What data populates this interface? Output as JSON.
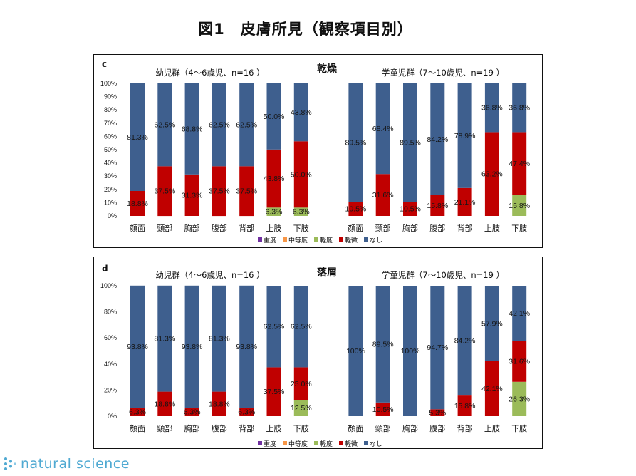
{
  "title": "図1　皮膚所見（観察項目別）",
  "footer": {
    "brand": "natural science",
    "icon": "dots-logo-icon",
    "color": "#4fa9d2"
  },
  "series_colors": {
    "重度": "#7030a0",
    "中等度": "#f79646",
    "軽度": "#9bbb59",
    "軽微": "#c00000",
    "なし": "#3e5f8e"
  },
  "chart_data": [
    {
      "type": "bar",
      "stacked": true,
      "panel": "c",
      "title": "乾燥",
      "categories": [
        "顔面",
        "頸部",
        "胸部",
        "腹部",
        "背部",
        "上肢",
        "下肢"
      ],
      "legend": [
        "重度",
        "中等度",
        "軽度",
        "軽微",
        "なし"
      ],
      "legend_position": "bottom",
      "ylim": [
        0,
        100
      ],
      "yticks": [
        0,
        10,
        20,
        30,
        40,
        50,
        60,
        70,
        80,
        90,
        100
      ],
      "y_unit": "%",
      "grid": false,
      "groups": [
        {
          "name": "幼児群（4～6歳児、n=16 ）",
          "series": [
            {
              "name": "重度",
              "values": [
                0,
                0,
                0,
                0,
                0,
                0,
                0
              ]
            },
            {
              "name": "中等度",
              "values": [
                0,
                0,
                0,
                0,
                0,
                0,
                0
              ]
            },
            {
              "name": "軽度",
              "values": [
                0,
                0,
                0,
                0,
                0,
                6.3,
                6.3
              ]
            },
            {
              "name": "軽微",
              "values": [
                18.8,
                37.5,
                31.3,
                37.5,
                37.5,
                43.8,
                50.0
              ]
            },
            {
              "name": "なし",
              "values": [
                81.3,
                62.5,
                68.8,
                62.5,
                62.5,
                50.0,
                43.8
              ]
            }
          ]
        },
        {
          "name": "学童児群（7～10歳児、n=19 ）",
          "series": [
            {
              "name": "重度",
              "values": [
                0,
                0,
                0,
                0,
                0,
                0,
                0
              ]
            },
            {
              "name": "中等度",
              "values": [
                0,
                0,
                0,
                0,
                0,
                0,
                0
              ]
            },
            {
              "name": "軽度",
              "values": [
                0,
                0,
                0,
                0,
                0,
                0,
                15.8
              ]
            },
            {
              "name": "軽微",
              "values": [
                10.5,
                31.6,
                10.5,
                15.8,
                21.1,
                63.2,
                47.4
              ]
            },
            {
              "name": "なし",
              "values": [
                89.5,
                68.4,
                89.5,
                84.2,
                78.9,
                36.8,
                36.8
              ]
            }
          ]
        }
      ]
    },
    {
      "type": "bar",
      "stacked": true,
      "panel": "d",
      "title": "落屑",
      "categories": [
        "顔面",
        "頸部",
        "胸部",
        "腹部",
        "背部",
        "上肢",
        "下肢"
      ],
      "legend": [
        "重度",
        "中等度",
        "軽度",
        "軽微",
        "なし"
      ],
      "legend_position": "bottom",
      "ylim": [
        0,
        100
      ],
      "yticks": [
        0,
        20,
        40,
        60,
        80,
        100
      ],
      "y_unit": "%",
      "grid": false,
      "groups": [
        {
          "name": "幼児群（4～6歳児、n=16 ）",
          "series": [
            {
              "name": "重度",
              "values": [
                0,
                0,
                0,
                0,
                0,
                0,
                0
              ]
            },
            {
              "name": "中等度",
              "values": [
                0,
                0,
                0,
                0,
                0,
                0,
                0
              ]
            },
            {
              "name": "軽度",
              "values": [
                0,
                0,
                0,
                0,
                0,
                0,
                12.5
              ]
            },
            {
              "name": "軽微",
              "values": [
                6.3,
                18.8,
                6.3,
                18.8,
                6.3,
                37.5,
                25.0
              ]
            },
            {
              "name": "なし",
              "values": [
                93.8,
                81.3,
                93.8,
                81.3,
                93.8,
                62.5,
                62.5
              ]
            }
          ]
        },
        {
          "name": "学童児群（7～10歳児、n=19 ）",
          "series": [
            {
              "name": "重度",
              "values": [
                0,
                0,
                0,
                0,
                0,
                0,
                0
              ]
            },
            {
              "name": "中等度",
              "values": [
                0,
                0,
                0,
                0,
                0,
                0,
                0
              ]
            },
            {
              "name": "軽度",
              "values": [
                0,
                0,
                0,
                0,
                0,
                0,
                26.3
              ]
            },
            {
              "name": "軽微",
              "values": [
                0,
                10.5,
                0,
                5.3,
                15.8,
                42.1,
                31.6
              ]
            },
            {
              "name": "なし",
              "values": [
                100,
                89.5,
                100,
                94.7,
                84.2,
                57.9,
                42.1
              ]
            }
          ]
        }
      ]
    }
  ]
}
